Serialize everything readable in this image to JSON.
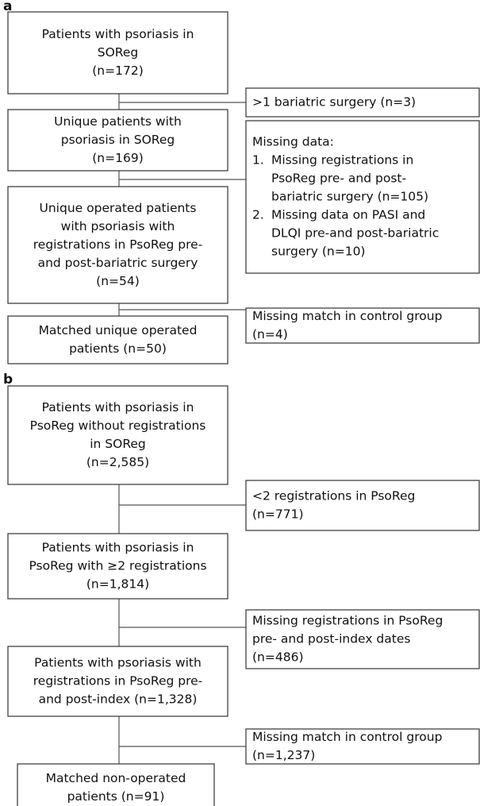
{
  "panels": [
    {
      "label": "a",
      "boxes": [
        {
          "lines": [
            "Patients with psoriasis in",
            "SOReg",
            "(n=172)"
          ]
        },
        {
          "lines": [
            "Unique patients with",
            "psoriasis in SOReg",
            "(n=169)"
          ]
        },
        {
          "lines": [
            "Unique operated patients",
            "with psoriasis with",
            "registrations in PsoReg pre-",
            "and post-bariatric surgery",
            "(n=54)"
          ]
        },
        {
          "lines": [
            "Matched unique operated",
            "patients (n=50)"
          ]
        }
      ],
      "exclusions": [
        {
          "lines": [
            ">1 bariatric surgery (n=3)"
          ]
        },
        {
          "lines": [
            "Missing data:"
          ],
          "items": [
            {
              "number": "1.",
              "lines": [
                "Missing registrations in",
                "PsoReg pre- and post-",
                "bariatric surgery (n=105)"
              ]
            },
            {
              "number": "2.",
              "lines": [
                "Missing data on PASI and",
                "DLQI pre-and post-bariatric",
                "surgery (n=10)"
              ]
            }
          ]
        },
        {
          "lines": [
            "Missing match in control group",
            "(n=4)"
          ]
        }
      ]
    },
    {
      "label": "b",
      "boxes": [
        {
          "lines": [
            "Patients with psoriasis in",
            "PsoReg without registrations",
            "in SOReg",
            "(n=2,585)"
          ]
        },
        {
          "lines": [
            "Patients with psoriasis in",
            "PsoReg with ≥2 registrations",
            "(n=1,814)"
          ]
        },
        {
          "lines": [
            "Patients with psoriasis with",
            "registrations in PsoReg pre-",
            "and post-index (n=1,328)"
          ]
        },
        {
          "lines": [
            "Matched non-operated",
            "patients (n=91)"
          ]
        }
      ],
      "exclusions": [
        {
          "lines": [
            "<2 registrations in PsoReg",
            "(n=771)"
          ]
        },
        {
          "lines": [
            "Missing registrations in PsoReg",
            "pre- and post-index dates",
            "(n=486)"
          ]
        },
        {
          "lines": [
            "Missing match in control group",
            "(n=1,237)"
          ]
        }
      ]
    }
  ]
}
